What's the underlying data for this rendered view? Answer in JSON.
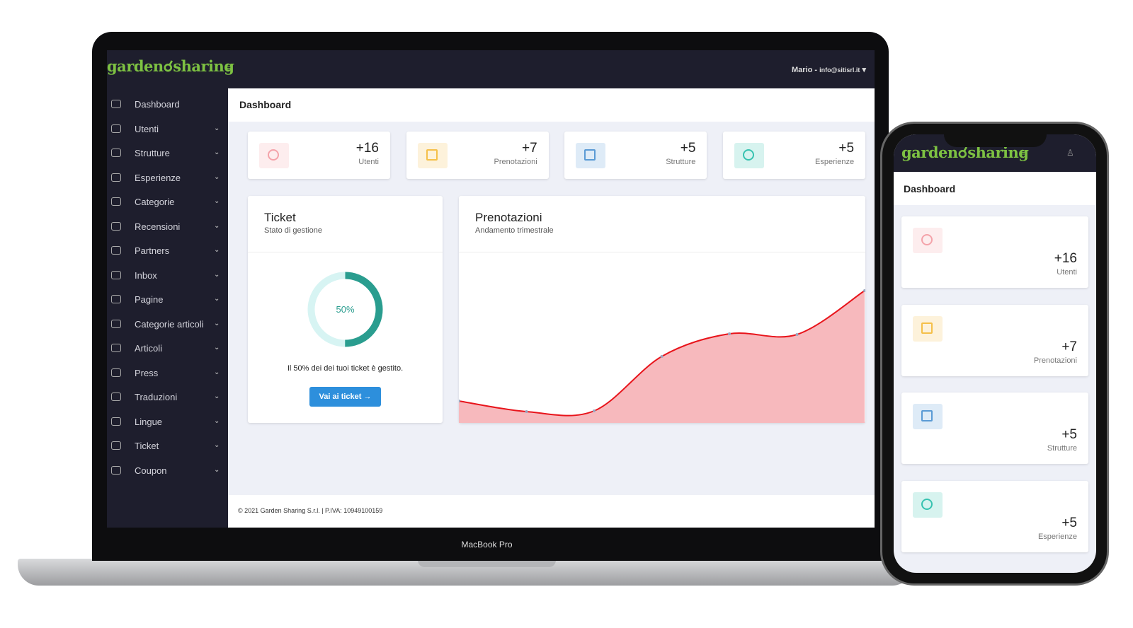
{
  "logo": {
    "left": "garden",
    "right": "sharing"
  },
  "user": {
    "name": "Mario -",
    "email": "info@sitisrl.it"
  },
  "menu": [
    "Dashboard",
    "Utenti",
    "Strutture",
    "Esperienze",
    "Categorie",
    "Recensioni",
    "Partners",
    "Inbox",
    "Pagine",
    "Categorie articoli",
    "Articoli",
    "Press",
    "Traduzioni",
    "Lingue",
    "Ticket",
    "Coupon"
  ],
  "page_title": "Dashboard",
  "stats": [
    {
      "value": "+16",
      "label": "Utenti",
      "color": "#f4a3aa"
    },
    {
      "value": "+7",
      "label": "Prenotazioni",
      "color": "#f5c04a"
    },
    {
      "value": "+5",
      "label": "Strutture",
      "color": "#5b9bd5"
    },
    {
      "value": "+5",
      "label": "Esperienze",
      "color": "#37c2b0"
    }
  ],
  "ticket": {
    "title": "Ticket",
    "subtitle": "Stato di gestione",
    "progress": {
      "value": 50,
      "label": "50%"
    },
    "text": "Il 50% dei dei tuoi ticket è gestito.",
    "button": "Vai ai ticket →"
  },
  "bookings": {
    "title": "Prenotazioni",
    "subtitle": "Andamento trimestrale",
    "values": [
      31,
      16,
      17,
      94,
      126,
      125,
      187
    ],
    "color": "#e8141b"
  },
  "footer": "© 2021 Garden Sharing S.r.l. | P.IVA: 10949100159",
  "laptop_label": "MacBook Pro"
}
